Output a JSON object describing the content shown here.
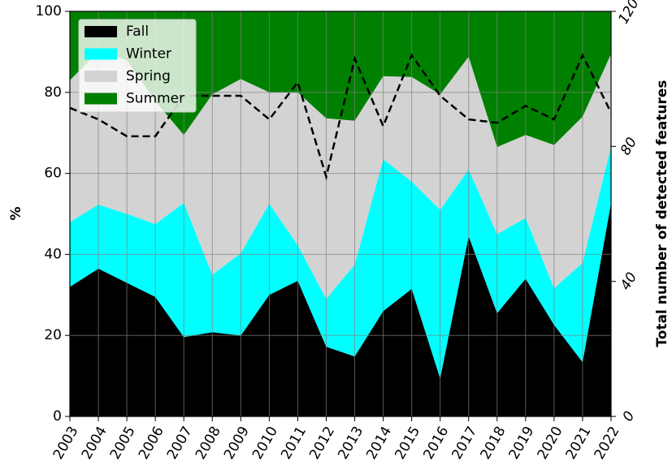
{
  "chart_data": {
    "type": "stacked-area",
    "y_label": "%",
    "y2_label": "Total number of detected features",
    "categories": [
      "2003",
      "2004",
      "2005",
      "2006",
      "2007",
      "2008",
      "2009",
      "2010",
      "2011",
      "2012",
      "2013",
      "2014",
      "2015",
      "2016",
      "2017",
      "2018",
      "2019",
      "2020",
      "2021",
      "2022"
    ],
    "series": [
      {
        "name": "Fall",
        "color": "#000000",
        "values": [
          32,
          36.5,
          33,
          29.5,
          19.6,
          20.8,
          20,
          30,
          33.5,
          17.2,
          14.8,
          26,
          31.5,
          9.4,
          44.5,
          25.5,
          34,
          22.6,
          13.4,
          52.7
        ]
      },
      {
        "name": "Winter",
        "color": "#00ffff",
        "values": [
          16,
          15.8,
          17,
          18,
          33.1,
          14.2,
          20.3,
          22.5,
          8.8,
          11.8,
          22.7,
          37.5,
          26.5,
          41.6,
          16.5,
          19.5,
          15,
          9.1,
          24.5,
          14
        ]
      },
      {
        "name": "Spring",
        "color": "#d3d3d3",
        "values": [
          35,
          37.7,
          38,
          30.3,
          16.8,
          44.5,
          43,
          27.5,
          37.7,
          44.6,
          35.5,
          20.5,
          25.8,
          28.5,
          27.8,
          21.5,
          20.5,
          35.3,
          36.1,
          22.8
        ]
      },
      {
        "name": "Summer",
        "color": "#008000",
        "values": [
          17,
          10,
          12,
          22.2,
          30.5,
          20.5,
          16.7,
          20,
          20,
          26.4,
          27,
          16,
          16.2,
          20.5,
          11.2,
          33.5,
          30.5,
          33,
          26,
          10.5
        ]
      },
      {
        "axis": "y2",
        "color": "#000000",
        "dashed": true,
        "values": [
          91.4,
          88,
          83,
          83,
          95,
          95,
          95,
          88,
          99,
          71,
          106,
          86,
          107,
          95,
          88,
          87,
          92,
          88,
          107,
          90
        ]
      }
    ],
    "ylim": [
      0,
      100
    ],
    "yticks": [
      0,
      20,
      40,
      60,
      80,
      100
    ],
    "y2lim": [
      0,
      120
    ],
    "y2ticks": [
      0,
      40,
      80,
      120
    ],
    "grid": true,
    "legend": "upper-left"
  }
}
